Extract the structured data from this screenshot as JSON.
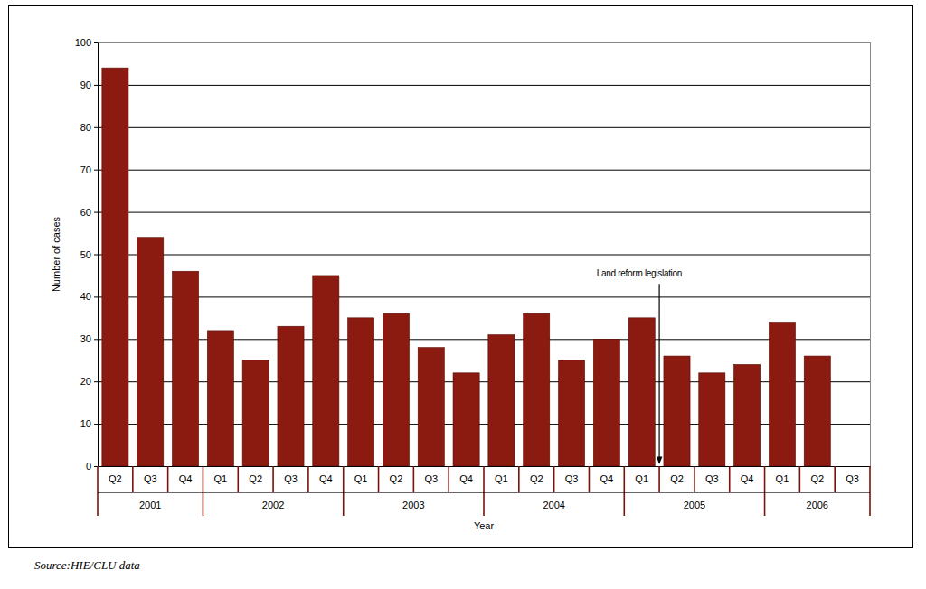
{
  "chart_data": {
    "type": "bar",
    "x_label": "Year",
    "y_label": "Number of cases",
    "categories": [
      "Q2",
      "Q3",
      "Q4",
      "Q1",
      "Q2",
      "Q3",
      "Q4",
      "Q1",
      "Q2",
      "Q3",
      "Q4",
      "Q1",
      "Q2",
      "Q3",
      "Q4",
      "Q1",
      "Q2",
      "Q3",
      "Q4",
      "Q1",
      "Q2",
      "Q3"
    ],
    "category_groups": [
      "2001",
      "2001",
      "2001",
      "2002",
      "2002",
      "2002",
      "2002",
      "2003",
      "2003",
      "2003",
      "2003",
      "2004",
      "2004",
      "2004",
      "2004",
      "2005",
      "2005",
      "2005",
      "2005",
      "2006",
      "2006",
      "2006"
    ],
    "values": [
      94,
      54,
      46,
      32,
      25,
      33,
      45,
      35,
      36,
      28,
      22,
      31,
      36,
      25,
      30,
      35,
      26,
      22,
      24,
      34,
      26,
      null
    ],
    "color": "#8b1a10",
    "ylim": [
      0,
      100
    ],
    "yticks": [
      0,
      10,
      20,
      30,
      40,
      50,
      60,
      70,
      80,
      90,
      100
    ],
    "grid": true,
    "annotations": [
      {
        "text": "Land reform legislation",
        "x": 15.5,
        "y": 43
      }
    ],
    "source": "Source:HIE/CLU data"
  }
}
